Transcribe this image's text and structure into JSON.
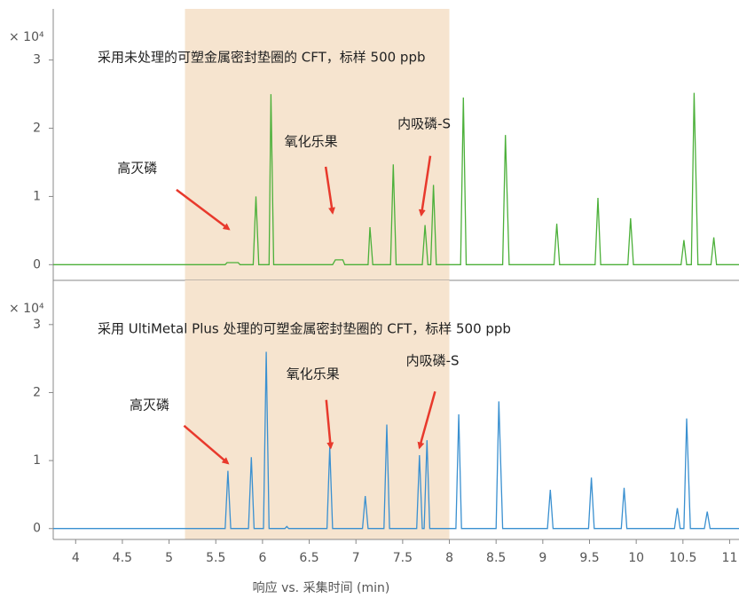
{
  "chart_data": [
    {
      "type": "line",
      "title": "采用未处理的可塑金属密封垫圈的 CFT，标样 500 ppb",
      "scale_label": "× 10⁴",
      "xlim": [
        3.76,
        11.1
      ],
      "ylim": [
        -0.23,
        3.75
      ],
      "yticks": [
        0,
        1,
        2,
        3
      ],
      "highlight": [
        5.17,
        8.0
      ],
      "series": [
        {
          "color": "#4cb03a",
          "x": [
            3.76,
            5.6,
            5.62,
            5.74,
            5.76,
            5.9,
            5.93,
            5.96,
            6.07,
            6.09,
            6.12,
            6.75,
            6.78,
            6.86,
            6.88,
            7.13,
            7.15,
            7.18,
            7.37,
            7.4,
            7.43,
            7.71,
            7.74,
            7.77,
            7.8,
            7.83,
            7.86,
            8.12,
            8.15,
            8.18,
            8.57,
            8.6,
            8.64,
            9.12,
            9.15,
            9.18,
            9.56,
            9.59,
            9.62,
            9.91,
            9.94,
            9.97,
            10.48,
            10.51,
            10.54,
            10.59,
            10.62,
            10.66,
            10.8,
            10.83,
            10.86,
            11.1
          ],
          "values": [
            0,
            0,
            0.03,
            0.03,
            0,
            0,
            1.0,
            0,
            0,
            2.5,
            0,
            0,
            0.07,
            0.07,
            0,
            0,
            0.55,
            0,
            0,
            1.47,
            0,
            0,
            0.58,
            0,
            0,
            1.17,
            0,
            0,
            2.45,
            0,
            0,
            1.9,
            0,
            0,
            0.6,
            0,
            0,
            0.98,
            0,
            0,
            0.68,
            0,
            0,
            0.36,
            0,
            0,
            2.52,
            0,
            0,
            0.4,
            0,
            0
          ]
        }
      ],
      "annotations": [
        {
          "text": "高灭磷",
          "text_x": 4.66,
          "text_y": 1.41,
          "x": 5.64,
          "y": 0.52
        },
        {
          "text": "氧化乐果",
          "text_x": 6.52,
          "text_y": 1.8,
          "x": 6.75,
          "y": 0.76
        },
        {
          "text": "内吸磷-S",
          "text_x": 7.73,
          "text_y": 2.06,
          "x": 7.7,
          "y": 0.73
        }
      ]
    },
    {
      "type": "line",
      "title": "采用 UltiMetal Plus 处理的可塑金属密封垫圈的 CFT，标样 500 ppb",
      "scale_label": "× 10⁴",
      "xlim": [
        3.76,
        11.1
      ],
      "ylim": [
        -0.16,
        3.65
      ],
      "yticks": [
        0,
        1,
        2,
        3
      ],
      "highlight": [
        5.17,
        8.0
      ],
      "xticks": [
        4,
        4.5,
        5,
        5.5,
        6,
        6.5,
        7,
        7.5,
        8,
        8.5,
        9,
        9.5,
        10,
        10.5,
        11
      ],
      "xlabel": "响应 vs. 采集时间 (min)",
      "series": [
        {
          "color": "#3a90d0",
          "x": [
            3.76,
            5.6,
            5.63,
            5.66,
            5.85,
            5.88,
            5.91,
            6.01,
            6.04,
            6.07,
            6.24,
            6.26,
            6.28,
            6.69,
            6.72,
            6.75,
            7.07,
            7.1,
            7.13,
            7.3,
            7.33,
            7.36,
            7.65,
            7.68,
            7.71,
            7.73,
            7.76,
            7.79,
            8.07,
            8.1,
            8.13,
            8.5,
            8.53,
            8.57,
            9.05,
            9.08,
            9.11,
            9.49,
            9.52,
            9.55,
            9.84,
            9.87,
            9.9,
            10.41,
            10.44,
            10.47,
            10.51,
            10.54,
            10.58,
            10.73,
            10.76,
            10.79,
            11.1
          ],
          "values": [
            0,
            0,
            0.85,
            0,
            0,
            1.05,
            0,
            0,
            2.6,
            0,
            0,
            0.03,
            0,
            0,
            1.2,
            0,
            0,
            0.48,
            0,
            0,
            1.53,
            0,
            0,
            1.08,
            0,
            0,
            1.3,
            0,
            0,
            1.68,
            0,
            0,
            1.87,
            0,
            0,
            0.57,
            0,
            0,
            0.75,
            0,
            0,
            0.6,
            0,
            0,
            0.3,
            0,
            0,
            1.62,
            0,
            0,
            0.25,
            0,
            0
          ]
        }
      ],
      "annotations": [
        {
          "text": "高灭磷",
          "text_x": 4.79,
          "text_y": 1.81,
          "x": 5.63,
          "y": 0.96
        },
        {
          "text": "氧化乐果",
          "text_x": 6.54,
          "text_y": 2.27,
          "x": 6.73,
          "y": 1.19
        },
        {
          "text": "内吸磷-S",
          "text_x": 7.82,
          "text_y": 2.46,
          "x": 7.68,
          "y": 1.19
        }
      ]
    }
  ]
}
